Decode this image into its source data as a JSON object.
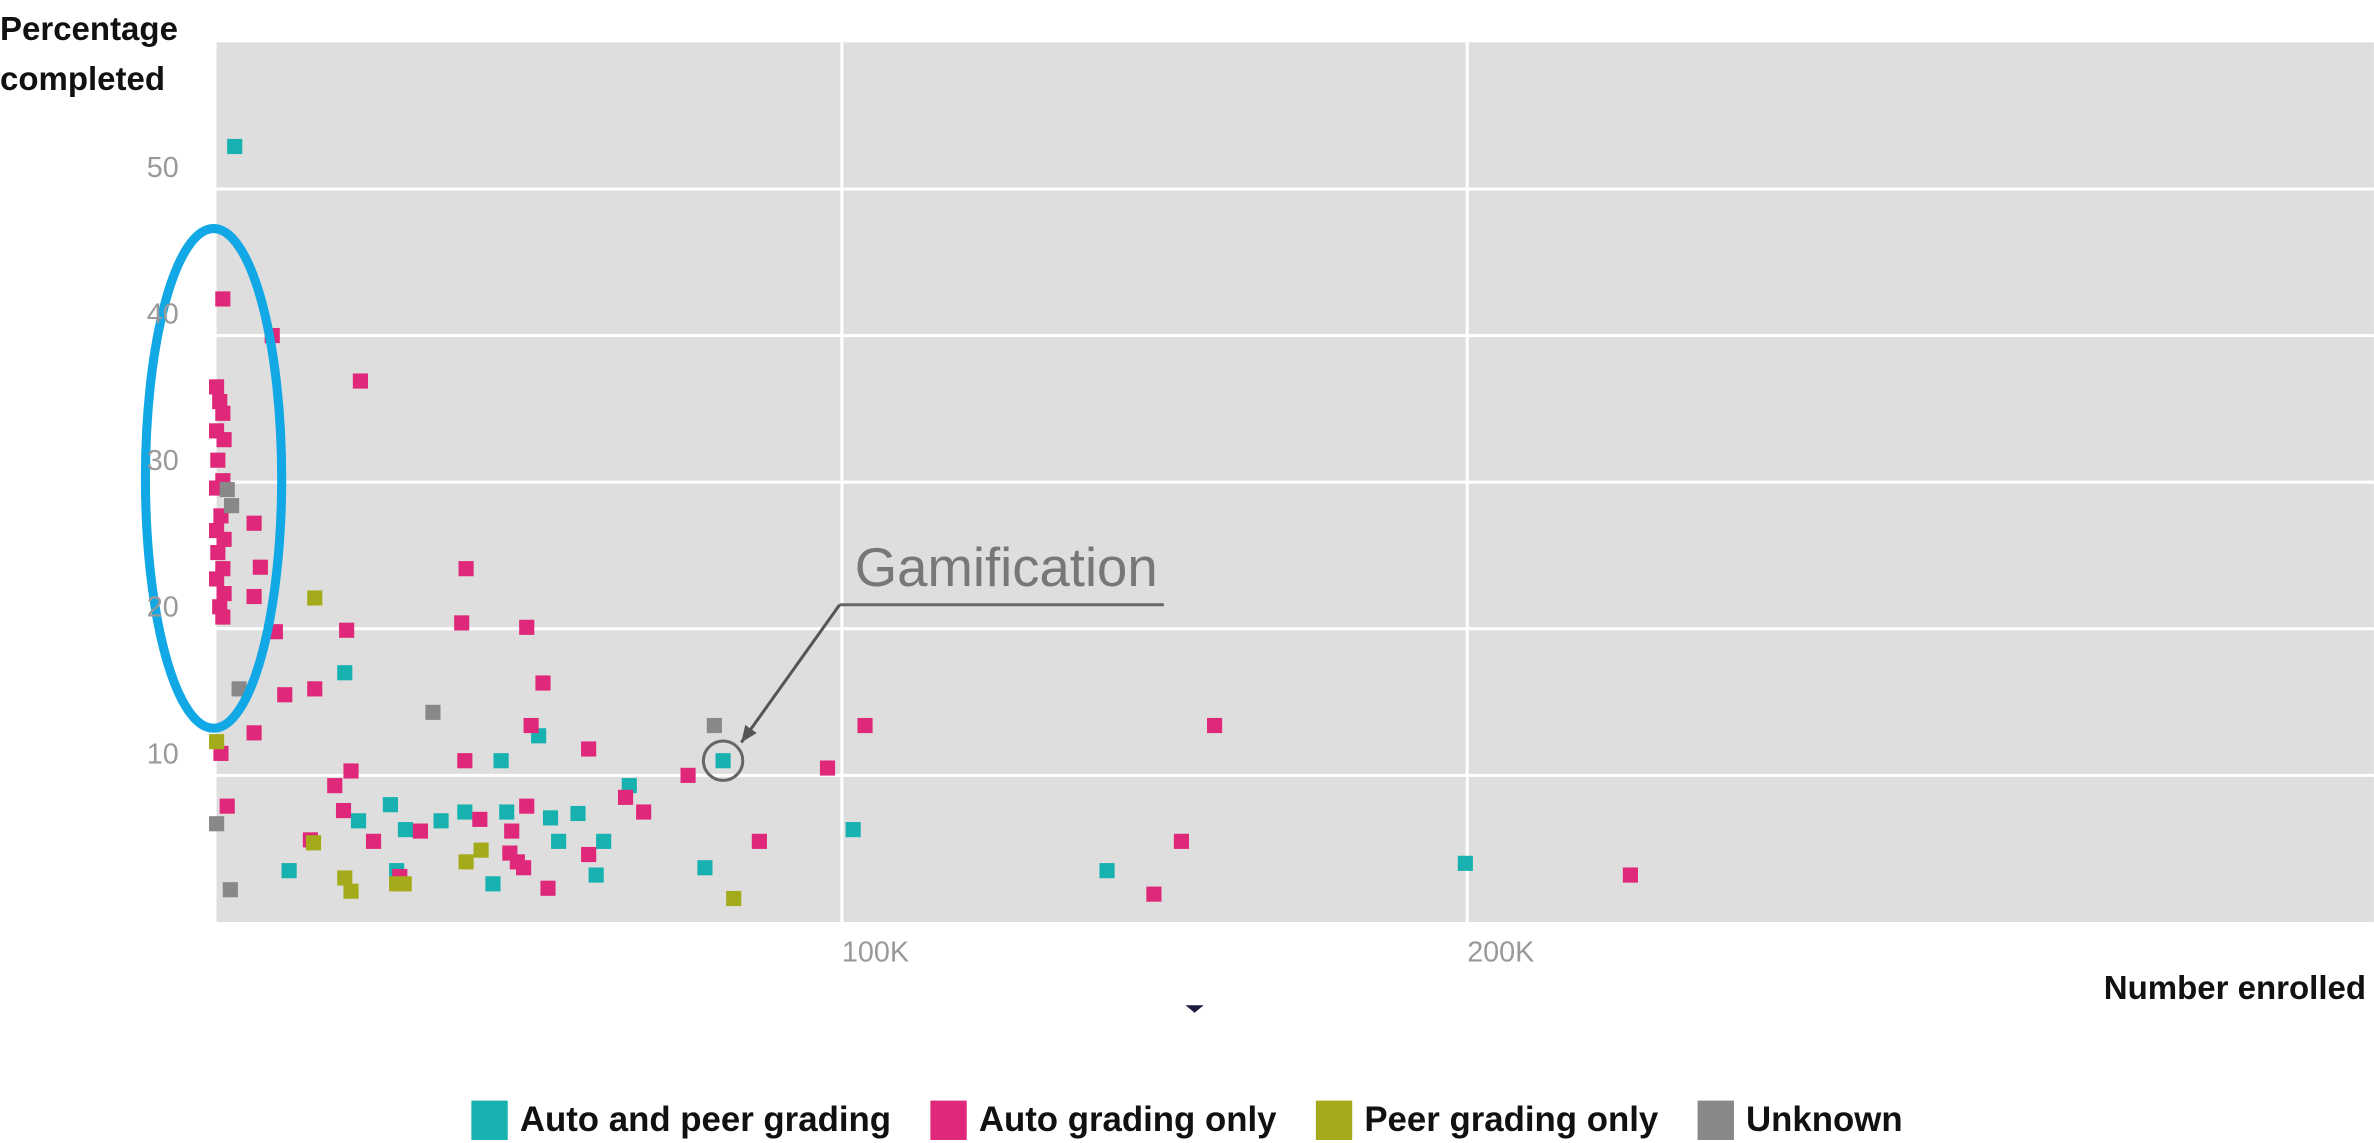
{
  "chart_data": {
    "type": "scatter",
    "y_label": "Percentage completed",
    "x_label": "Number enrolled",
    "xlim": [
      0,
      345000
    ],
    "ylim": [
      0,
      60
    ],
    "xticks": [
      {
        "value": 100000,
        "label": "100K"
      },
      {
        "value": 200000,
        "label": "200K"
      }
    ],
    "yticks": [
      10,
      20,
      30,
      40,
      50
    ],
    "grid": true,
    "legend": "bottom",
    "annotations": [
      {
        "text": "Gamification",
        "x": 81000,
        "y": 11
      }
    ],
    "series": [
      {
        "name": "Auto and peer grading",
        "color": "#17b2b0",
        "x": [
          2900,
          20500,
          51500,
          45500,
          66000,
          27800,
          22700,
          30200,
          35900,
          39700,
          46400,
          53400,
          57800,
          54700,
          61900,
          60700,
          44200,
          28800,
          11600,
          78100,
          81000,
          101800,
          142400,
          199700
        ],
        "values": [
          52.9,
          17.0,
          12.7,
          11.0,
          9.3,
          8.0,
          6.9,
          6.3,
          6.9,
          7.5,
          7.5,
          7.1,
          7.4,
          5.5,
          5.5,
          3.2,
          2.6,
          3.5,
          3.5,
          3.7,
          11.0,
          6.3,
          3.5,
          4.0
        ]
      },
      {
        "name": "Auto grading only",
        "color": "#e0287a",
        "x": [
          1000,
          8900,
          23000,
          0,
          500,
          1000,
          0,
          1200,
          200,
          1000,
          0,
          700,
          0,
          1200,
          200,
          1000,
          0,
          1200,
          500,
          1000,
          6000,
          7000,
          6000,
          9400,
          20800,
          39900,
          39200,
          49600,
          52200,
          50300,
          59500,
          39700,
          6000,
          10900,
          15700,
          21500,
          18900,
          20300,
          15000,
          25100,
          32600,
          47200,
          49600,
          42100,
          46900,
          48100,
          49100,
          53000,
          59500,
          65400,
          68300,
          1700,
          75400,
          86800,
          97700,
          103700,
          154300,
          149900,
          159600,
          226100,
          29300,
          700
        ],
        "values": [
          42.5,
          40.0,
          36.9,
          36.5,
          35.5,
          34.7,
          33.5,
          32.9,
          31.5,
          30.1,
          29.6,
          27.7,
          26.7,
          26.1,
          25.2,
          24.1,
          23.4,
          22.4,
          21.5,
          20.8,
          27.2,
          24.2,
          22.2,
          19.8,
          19.9,
          24.1,
          20.4,
          20.1,
          16.3,
          13.4,
          11.8,
          11.0,
          12.9,
          15.5,
          15.9,
          10.3,
          9.3,
          7.6,
          5.6,
          5.5,
          6.2,
          6.2,
          7.9,
          7.0,
          4.7,
          4.1,
          3.7,
          2.3,
          4.6,
          8.5,
          7.5,
          7.9,
          10.0,
          5.5,
          10.5,
          13.4,
          5.5,
          1.9,
          13.4,
          3.2,
          3.1,
          11.5
        ]
      },
      {
        "name": "Peer grading only",
        "color": "#a4ab1a",
        "x": [
          15700,
          0,
          15500,
          20500,
          21500,
          28800,
          30000,
          39900,
          42300,
          82700
        ],
        "values": [
          22.1,
          12.3,
          5.4,
          3.0,
          2.1,
          2.6,
          2.6,
          4.1,
          4.9,
          1.6
        ]
      },
      {
        "name": "Unknown",
        "color": "#888888",
        "x": [
          2400,
          1700,
          3600,
          0,
          2200,
          34600,
          79600
        ],
        "values": [
          28.4,
          29.5,
          15.9,
          6.7,
          2.2,
          14.3,
          13.4
        ]
      }
    ]
  }
}
